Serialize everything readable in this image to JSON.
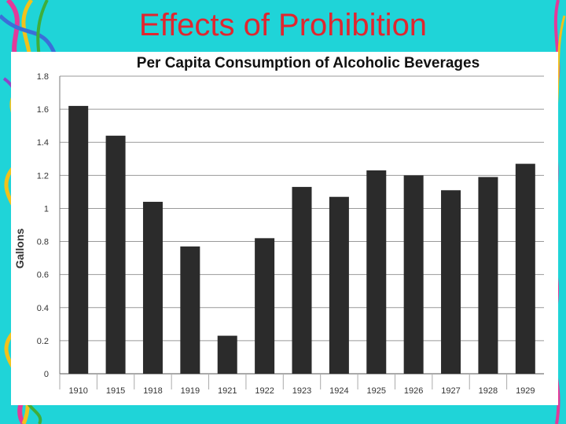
{
  "slide": {
    "title": "Effects of Prohibition"
  },
  "colors": {
    "background": "#1fd4d8",
    "title": "#e0262f",
    "bar": "#2b2b2b",
    "grid": "#999999"
  },
  "chart_data": {
    "type": "bar",
    "title": "Per Capita Consumption of Alcoholic Beverages",
    "xlabel": "",
    "ylabel": "Gallons",
    "categories": [
      "1910",
      "1915",
      "1918",
      "1919",
      "1921",
      "1922",
      "1923",
      "1924",
      "1925",
      "1926",
      "1927",
      "1928",
      "1929"
    ],
    "values": [
      1.62,
      1.44,
      1.04,
      0.77,
      0.23,
      0.82,
      1.13,
      1.07,
      1.23,
      1.2,
      1.11,
      1.19,
      1.27
    ],
    "ylim": [
      0,
      1.8
    ],
    "yticks": [
      "0",
      "0.2",
      "0.4",
      "0.6",
      "0.8",
      "1",
      "1.2",
      "1.4",
      "1.6",
      "1.8"
    ],
    "grid": true,
    "legend": "none"
  }
}
